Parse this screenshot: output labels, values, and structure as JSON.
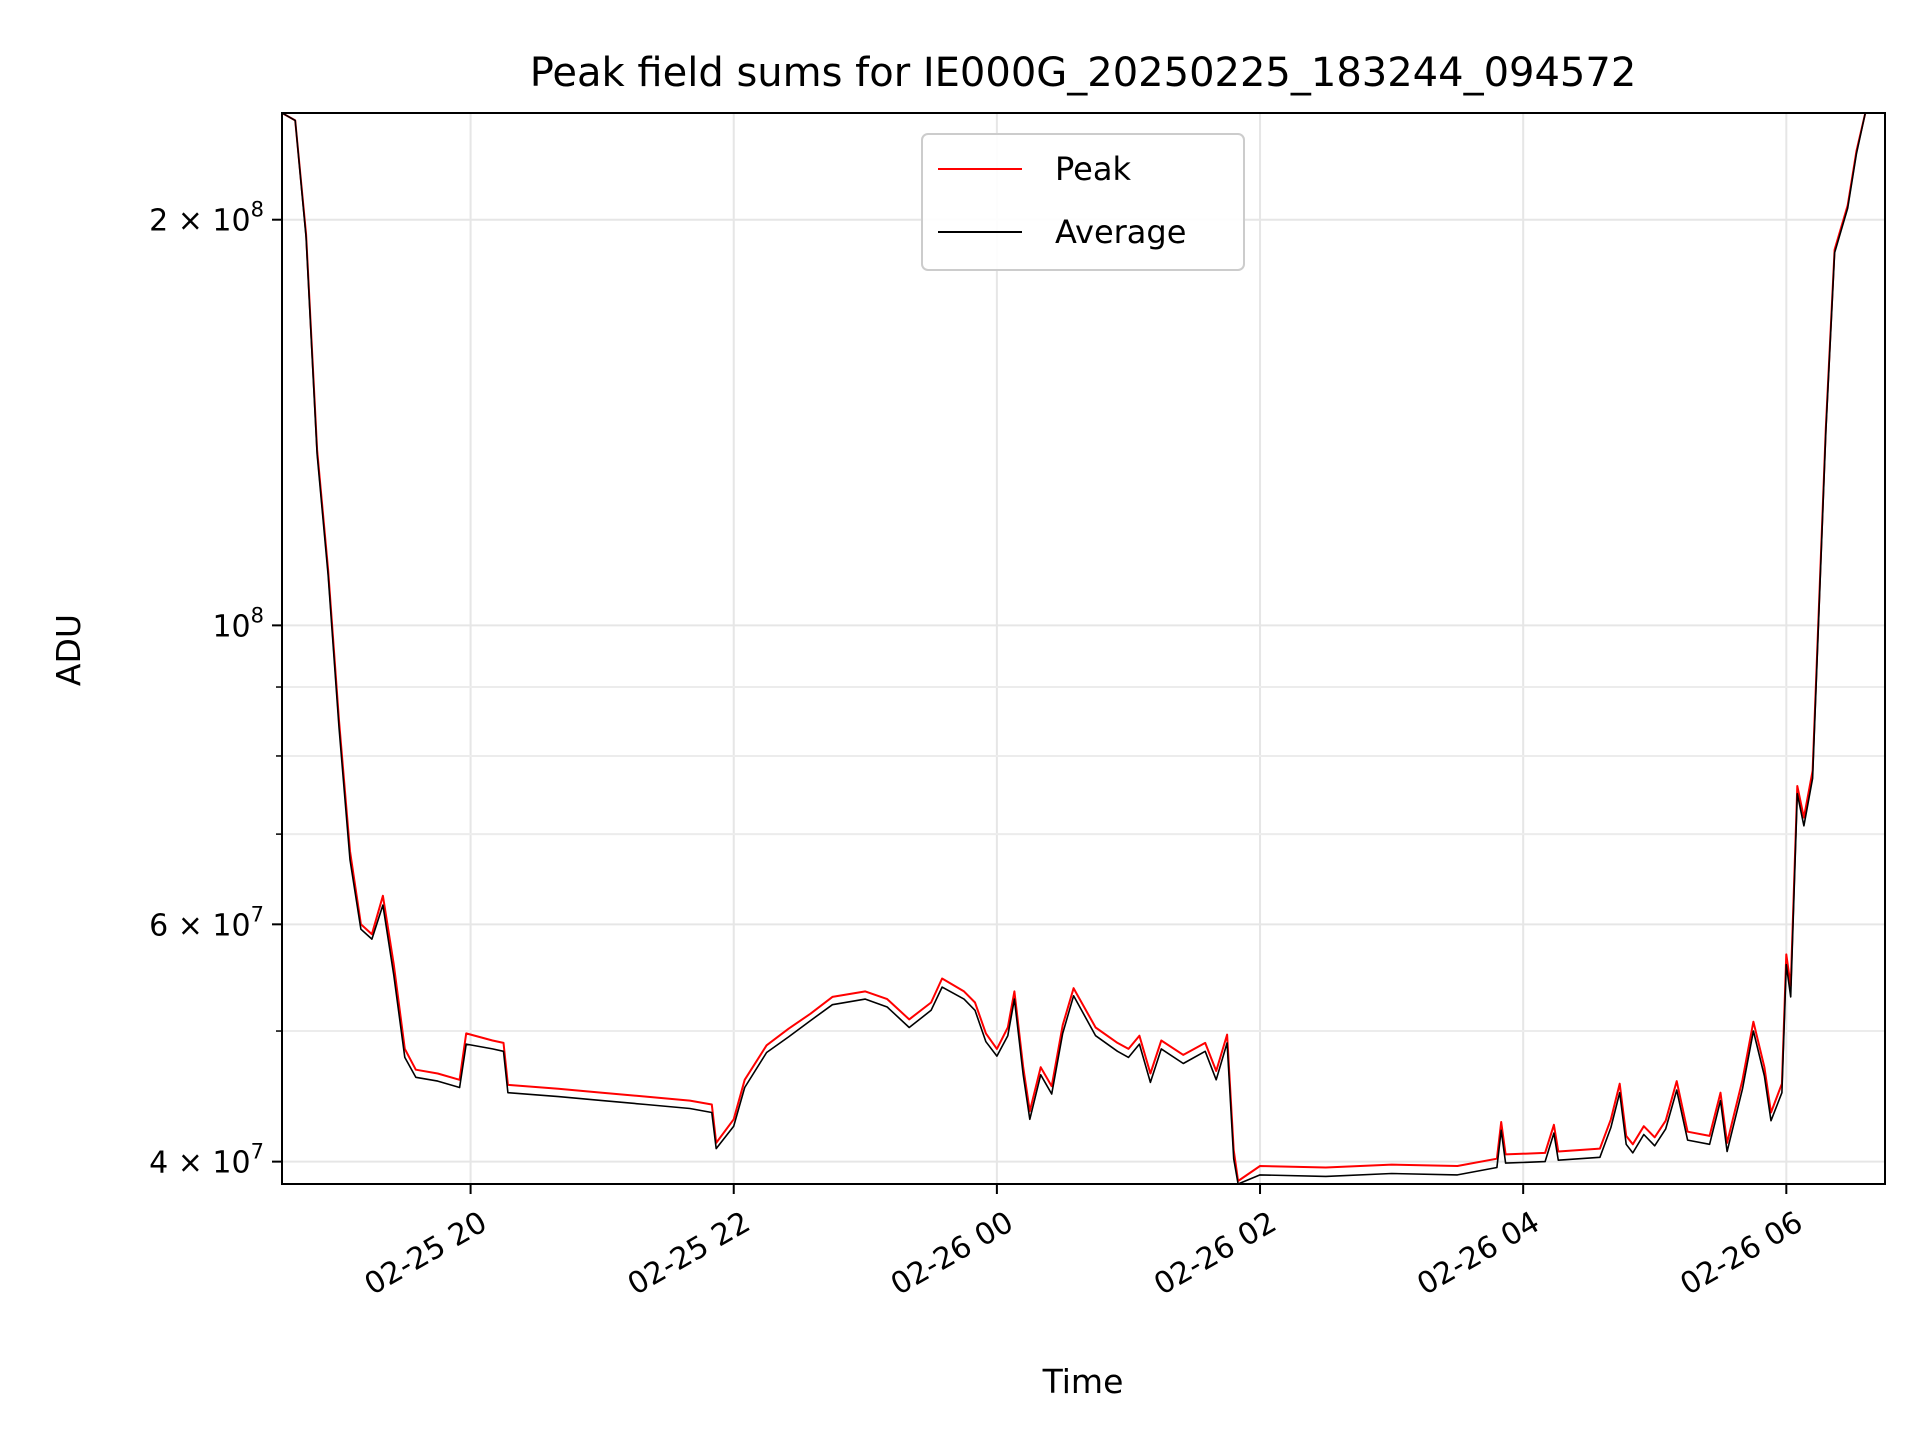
{
  "chart_data": {
    "type": "line",
    "title": "Peak field sums for IE000G_20250225_183244_094572",
    "xlabel": "Time",
    "ylabel": "ADU",
    "y_scale": "log",
    "ylim": [
      38500000,
      240000000
    ],
    "xlim": [
      "2025-02-25 18:34",
      "2025-02-26 06:45"
    ],
    "grid": true,
    "legend_position": "upper-center",
    "x_ticks": [
      {
        "label": "02-25 20",
        "value": "2025-02-25 20:00"
      },
      {
        "label": "02-25 22",
        "value": "2025-02-25 22:00"
      },
      {
        "label": "02-26 00",
        "value": "2025-02-26 00:00"
      },
      {
        "label": "02-26 02",
        "value": "2025-02-26 02:00"
      },
      {
        "label": "02-26 04",
        "value": "2025-02-26 04:00"
      },
      {
        "label": "02-26 06",
        "value": "2025-02-26 06:00"
      }
    ],
    "y_ticks": [
      {
        "label": "4 × 10",
        "exp": "7",
        "value": 40000000
      },
      {
        "label": "6 × 10",
        "exp": "7",
        "value": 60000000
      },
      {
        "label": "10",
        "exp": "8",
        "value": 100000000
      },
      {
        "label": "2 × 10",
        "exp": "8",
        "value": 200000000
      }
    ],
    "y_minor_ticks": [
      50000000,
      70000000,
      80000000,
      90000000
    ],
    "series": [
      {
        "name": "Peak",
        "color": "#ff0000",
        "points": [
          [
            "2025-02-25 18:34",
            240000000
          ],
          [
            "2025-02-25 18:40",
            237000000
          ],
          [
            "2025-02-25 18:45",
            195000000
          ],
          [
            "2025-02-25 18:50",
            135000000
          ],
          [
            "2025-02-25 18:55",
            110000000
          ],
          [
            "2025-02-25 19:00",
            85000000
          ],
          [
            "2025-02-25 19:05",
            68000000
          ],
          [
            "2025-02-25 19:10",
            60000000
          ],
          [
            "2025-02-25 19:15",
            59000000
          ],
          [
            "2025-02-25 19:20",
            63000000
          ],
          [
            "2025-02-25 19:25",
            56000000
          ],
          [
            "2025-02-25 19:30",
            48500000
          ],
          [
            "2025-02-25 19:35",
            46800000
          ],
          [
            "2025-02-25 19:45",
            46500000
          ],
          [
            "2025-02-25 19:55",
            46000000
          ],
          [
            "2025-02-25 19:58",
            49800000
          ],
          [
            "2025-02-25 20:10",
            49200000
          ],
          [
            "2025-02-25 20:15",
            49000000
          ],
          [
            "2025-02-25 20:17",
            45600000
          ],
          [
            "2025-02-25 20:40",
            45300000
          ],
          [
            "2025-02-25 21:00",
            45000000
          ],
          [
            "2025-02-25 21:20",
            44700000
          ],
          [
            "2025-02-25 21:40",
            44400000
          ],
          [
            "2025-02-25 21:50",
            44100000
          ],
          [
            "2025-02-25 21:52",
            41300000
          ],
          [
            "2025-02-25 22:00",
            43000000
          ],
          [
            "2025-02-25 22:05",
            46000000
          ],
          [
            "2025-02-25 22:15",
            48800000
          ],
          [
            "2025-02-25 22:25",
            50200000
          ],
          [
            "2025-02-25 22:35",
            51500000
          ],
          [
            "2025-02-25 22:45",
            53000000
          ],
          [
            "2025-02-25 23:00",
            53500000
          ],
          [
            "2025-02-25 23:10",
            52800000
          ],
          [
            "2025-02-25 23:20",
            51000000
          ],
          [
            "2025-02-25 23:30",
            52500000
          ],
          [
            "2025-02-25 23:35",
            54700000
          ],
          [
            "2025-02-25 23:45",
            53500000
          ],
          [
            "2025-02-25 23:50",
            52500000
          ],
          [
            "2025-02-25 23:55",
            49800000
          ],
          [
            "2025-02-26 00:00",
            48500000
          ],
          [
            "2025-02-26 00:05",
            50300000
          ],
          [
            "2025-02-26 00:08",
            53500000
          ],
          [
            "2025-02-26 00:12",
            47000000
          ],
          [
            "2025-02-26 00:15",
            43600000
          ],
          [
            "2025-02-26 00:20",
            47000000
          ],
          [
            "2025-02-26 00:25",
            45500000
          ],
          [
            "2025-02-26 00:30",
            50500000
          ],
          [
            "2025-02-26 00:35",
            53800000
          ],
          [
            "2025-02-26 00:45",
            50300000
          ],
          [
            "2025-02-26 00:55",
            49000000
          ],
          [
            "2025-02-26 01:00",
            48500000
          ],
          [
            "2025-02-26 01:05",
            49600000
          ],
          [
            "2025-02-26 01:10",
            46500000
          ],
          [
            "2025-02-26 01:15",
            49200000
          ],
          [
            "2025-02-26 01:25",
            48000000
          ],
          [
            "2025-02-26 01:35",
            49000000
          ],
          [
            "2025-02-26 01:40",
            46700000
          ],
          [
            "2025-02-26 01:45",
            49700000
          ],
          [
            "2025-02-26 01:48",
            40800000
          ],
          [
            "2025-02-26 01:50",
            38700000
          ],
          [
            "2025-02-26 02:00",
            39700000
          ],
          [
            "2025-02-26 02:30",
            39600000
          ],
          [
            "2025-02-26 03:00",
            39800000
          ],
          [
            "2025-02-26 03:30",
            39700000
          ],
          [
            "2025-02-26 03:48",
            40200000
          ],
          [
            "2025-02-26 03:50",
            42800000
          ],
          [
            "2025-02-26 03:52",
            40500000
          ],
          [
            "2025-02-26 04:10",
            40600000
          ],
          [
            "2025-02-26 04:14",
            42600000
          ],
          [
            "2025-02-26 04:16",
            40700000
          ],
          [
            "2025-02-26 04:35",
            40900000
          ],
          [
            "2025-02-26 04:40",
            43000000
          ],
          [
            "2025-02-26 04:44",
            45700000
          ],
          [
            "2025-02-26 04:47",
            41800000
          ],
          [
            "2025-02-26 04:50",
            41200000
          ],
          [
            "2025-02-26 04:55",
            42500000
          ],
          [
            "2025-02-26 05:00",
            41700000
          ],
          [
            "2025-02-26 05:05",
            42900000
          ],
          [
            "2025-02-26 05:10",
            45900000
          ],
          [
            "2025-02-26 05:15",
            42100000
          ],
          [
            "2025-02-26 05:25",
            41800000
          ],
          [
            "2025-02-26 05:30",
            45000000
          ],
          [
            "2025-02-26 05:33",
            41300000
          ],
          [
            "2025-02-26 05:40",
            46000000
          ],
          [
            "2025-02-26 05:45",
            50800000
          ],
          [
            "2025-02-26 05:50",
            47000000
          ],
          [
            "2025-02-26 05:53",
            43500000
          ],
          [
            "2025-02-26 05:58",
            45700000
          ],
          [
            "2025-02-26 06:00",
            57000000
          ],
          [
            "2025-02-26 06:02",
            54000000
          ],
          [
            "2025-02-26 06:05",
            76000000
          ],
          [
            "2025-02-26 06:08",
            72000000
          ],
          [
            "2025-02-26 06:12",
            78000000
          ],
          [
            "2025-02-26 06:18",
            140000000
          ],
          [
            "2025-02-26 06:22",
            190000000
          ],
          [
            "2025-02-26 06:28",
            205000000
          ],
          [
            "2025-02-26 06:32",
            225000000
          ],
          [
            "2025-02-26 06:36",
            240000000
          ],
          [
            "2025-02-26 06:45",
            240000000
          ]
        ]
      },
      {
        "name": "Average",
        "color": "#000000",
        "points": [
          [
            "2025-02-25 18:34",
            240000000
          ],
          [
            "2025-02-25 18:40",
            237000000
          ],
          [
            "2025-02-25 18:45",
            194000000
          ],
          [
            "2025-02-25 18:50",
            134000000
          ],
          [
            "2025-02-25 18:55",
            109000000
          ],
          [
            "2025-02-25 19:00",
            84000000
          ],
          [
            "2025-02-25 19:05",
            67000000
          ],
          [
            "2025-02-25 19:10",
            59500000
          ],
          [
            "2025-02-25 19:15",
            58500000
          ],
          [
            "2025-02-25 19:20",
            62000000
          ],
          [
            "2025-02-25 19:25",
            55000000
          ],
          [
            "2025-02-25 19:30",
            47800000
          ],
          [
            "2025-02-25 19:35",
            46200000
          ],
          [
            "2025-02-25 19:45",
            45900000
          ],
          [
            "2025-02-25 19:55",
            45400000
          ],
          [
            "2025-02-25 19:58",
            48900000
          ],
          [
            "2025-02-25 20:10",
            48500000
          ],
          [
            "2025-02-25 20:15",
            48300000
          ],
          [
            "2025-02-25 20:17",
            45000000
          ],
          [
            "2025-02-25 20:40",
            44700000
          ],
          [
            "2025-02-25 21:00",
            44400000
          ],
          [
            "2025-02-25 21:20",
            44100000
          ],
          [
            "2025-02-25 21:40",
            43800000
          ],
          [
            "2025-02-25 21:50",
            43500000
          ],
          [
            "2025-02-25 21:52",
            40900000
          ],
          [
            "2025-02-25 22:00",
            42500000
          ],
          [
            "2025-02-25 22:05",
            45400000
          ],
          [
            "2025-02-25 22:15",
            48200000
          ],
          [
            "2025-02-25 22:25",
            49500000
          ],
          [
            "2025-02-25 22:35",
            50900000
          ],
          [
            "2025-02-25 22:45",
            52300000
          ],
          [
            "2025-02-25 23:00",
            52800000
          ],
          [
            "2025-02-25 23:10",
            52100000
          ],
          [
            "2025-02-25 23:20",
            50300000
          ],
          [
            "2025-02-25 23:30",
            51800000
          ],
          [
            "2025-02-25 23:35",
            53900000
          ],
          [
            "2025-02-25 23:45",
            52800000
          ],
          [
            "2025-02-25 23:50",
            51800000
          ],
          [
            "2025-02-25 23:55",
            49100000
          ],
          [
            "2025-02-26 00:00",
            47900000
          ],
          [
            "2025-02-26 00:05",
            49600000
          ],
          [
            "2025-02-26 00:08",
            52800000
          ],
          [
            "2025-02-26 00:12",
            46400000
          ],
          [
            "2025-02-26 00:15",
            43000000
          ],
          [
            "2025-02-26 00:20",
            46400000
          ],
          [
            "2025-02-26 00:25",
            44900000
          ],
          [
            "2025-02-26 00:30",
            49800000
          ],
          [
            "2025-02-26 00:35",
            53100000
          ],
          [
            "2025-02-26 00:45",
            49600000
          ],
          [
            "2025-02-26 00:55",
            48300000
          ],
          [
            "2025-02-26 01:00",
            47800000
          ],
          [
            "2025-02-26 01:05",
            48900000
          ],
          [
            "2025-02-26 01:10",
            45800000
          ],
          [
            "2025-02-26 01:15",
            48500000
          ],
          [
            "2025-02-26 01:25",
            47300000
          ],
          [
            "2025-02-26 01:35",
            48300000
          ],
          [
            "2025-02-26 01:40",
            46000000
          ],
          [
            "2025-02-26 01:45",
            49000000
          ],
          [
            "2025-02-26 01:48",
            40200000
          ],
          [
            "2025-02-26 01:50",
            38500000
          ],
          [
            "2025-02-26 02:00",
            39100000
          ],
          [
            "2025-02-26 02:30",
            39000000
          ],
          [
            "2025-02-26 03:00",
            39200000
          ],
          [
            "2025-02-26 03:30",
            39100000
          ],
          [
            "2025-02-26 03:48",
            39600000
          ],
          [
            "2025-02-26 03:50",
            42200000
          ],
          [
            "2025-02-26 03:52",
            39900000
          ],
          [
            "2025-02-26 04:10",
            40000000
          ],
          [
            "2025-02-26 04:14",
            42000000
          ],
          [
            "2025-02-26 04:16",
            40100000
          ],
          [
            "2025-02-26 04:35",
            40300000
          ],
          [
            "2025-02-26 04:40",
            42400000
          ],
          [
            "2025-02-26 04:44",
            45000000
          ],
          [
            "2025-02-26 04:47",
            41200000
          ],
          [
            "2025-02-26 04:50",
            40600000
          ],
          [
            "2025-02-26 04:55",
            41900000
          ],
          [
            "2025-02-26 05:00",
            41100000
          ],
          [
            "2025-02-26 05:05",
            42300000
          ],
          [
            "2025-02-26 05:10",
            45200000
          ],
          [
            "2025-02-26 05:15",
            41500000
          ],
          [
            "2025-02-26 05:25",
            41200000
          ],
          [
            "2025-02-26 05:30",
            44400000
          ],
          [
            "2025-02-26 05:33",
            40700000
          ],
          [
            "2025-02-26 05:40",
            45300000
          ],
          [
            "2025-02-26 05:45",
            50000000
          ],
          [
            "2025-02-26 05:50",
            46300000
          ],
          [
            "2025-02-26 05:53",
            42900000
          ],
          [
            "2025-02-26 05:58",
            45000000
          ],
          [
            "2025-02-26 06:00",
            56000000
          ],
          [
            "2025-02-26 06:02",
            53000000
          ],
          [
            "2025-02-26 06:05",
            75000000
          ],
          [
            "2025-02-26 06:08",
            71000000
          ],
          [
            "2025-02-26 06:12",
            77000000
          ],
          [
            "2025-02-26 06:18",
            139000000
          ],
          [
            "2025-02-26 06:22",
            189000000
          ],
          [
            "2025-02-26 06:28",
            204000000
          ],
          [
            "2025-02-26 06:32",
            224000000
          ],
          [
            "2025-02-26 06:36",
            240000000
          ],
          [
            "2025-02-26 06:45",
            240000000
          ]
        ]
      }
    ]
  }
}
